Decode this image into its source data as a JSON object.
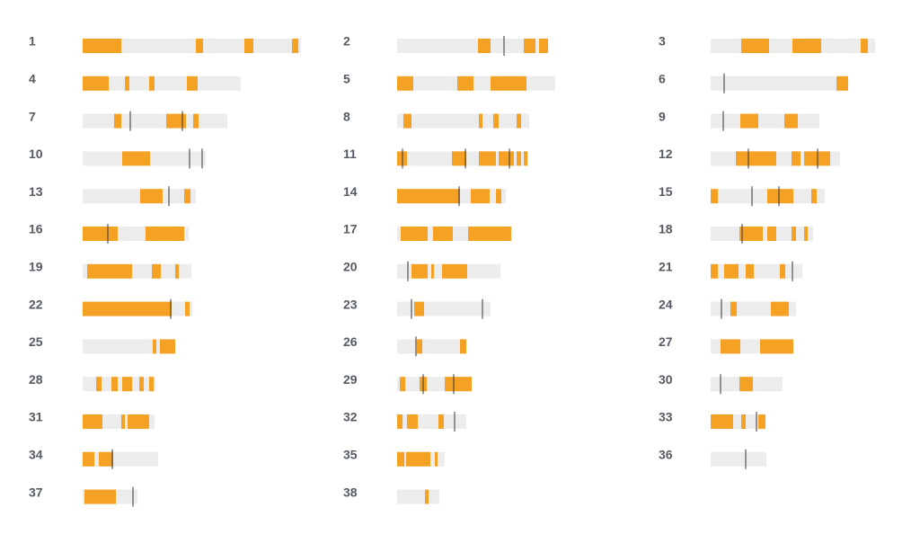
{
  "chart_data": {
    "type": "ideogram",
    "bar_color": "#ececec",
    "segment_color": "#f5a124",
    "marker_color": "#333333",
    "tracks": [
      {
        "label": "1",
        "length": 243,
        "segments": [
          [
            0,
            43
          ],
          [
            126,
            134
          ],
          [
            180,
            190
          ],
          [
            233,
            240
          ]
        ],
        "markers": []
      },
      {
        "label": "2",
        "length": 168,
        "segments": [
          [
            90,
            104
          ],
          [
            141,
            154
          ],
          [
            158,
            168
          ]
        ],
        "markers": [
          119
        ]
      },
      {
        "label": "3",
        "length": 183,
        "segments": [
          [
            34,
            65
          ],
          [
            91,
            123
          ],
          [
            167,
            175
          ]
        ],
        "markers": []
      },
      {
        "label": "4",
        "length": 176,
        "segments": [
          [
            0,
            29
          ],
          [
            47,
            52
          ],
          [
            74,
            80
          ],
          [
            116,
            128
          ]
        ],
        "markers": []
      },
      {
        "label": "5",
        "length": 176,
        "segments": [
          [
            0,
            18
          ],
          [
            67,
            85
          ],
          [
            104,
            144
          ]
        ],
        "markers": []
      },
      {
        "label": "6",
        "length": 153,
        "segments": [
          [
            140,
            153
          ]
        ],
        "markers": [
          15
        ]
      },
      {
        "label": "7",
        "length": 161,
        "segments": [
          [
            35,
            43
          ],
          [
            93,
            115
          ],
          [
            123,
            129
          ]
        ],
        "markers": [
          53,
          111
        ]
      },
      {
        "label": "8",
        "length": 147,
        "segments": [
          [
            7,
            16
          ],
          [
            91,
            95
          ],
          [
            107,
            113
          ],
          [
            133,
            138
          ]
        ],
        "markers": []
      },
      {
        "label": "9",
        "length": 121,
        "segments": [
          [
            33,
            53
          ],
          [
            82,
            97
          ]
        ],
        "markers": [
          14
        ]
      },
      {
        "label": "10",
        "length": 137,
        "segments": [
          [
            44,
            75
          ]
        ],
        "markers": [
          119,
          133
        ]
      },
      {
        "label": "11",
        "length": 146,
        "segments": [
          [
            0,
            11
          ],
          [
            61,
            77
          ],
          [
            91,
            110
          ],
          [
            113,
            130
          ],
          [
            133,
            138
          ],
          [
            141,
            145
          ]
        ],
        "markers": [
          6,
          76,
          125
        ]
      },
      {
        "label": "12",
        "length": 144,
        "segments": [
          [
            28,
            73
          ],
          [
            90,
            100
          ],
          [
            104,
            133
          ]
        ],
        "markers": [
          42,
          119
        ]
      },
      {
        "label": "13",
        "length": 126,
        "segments": [
          [
            64,
            89
          ],
          [
            113,
            120
          ]
        ],
        "markers": [
          96
        ]
      },
      {
        "label": "14",
        "length": 121,
        "segments": [
          [
            0,
            70
          ],
          [
            82,
            103
          ],
          [
            110,
            116
          ]
        ],
        "markers": [
          69
        ]
      },
      {
        "label": "15",
        "length": 127,
        "segments": [
          [
            0,
            8
          ],
          [
            63,
            92
          ],
          [
            112,
            118
          ]
        ],
        "markers": [
          46,
          76
        ]
      },
      {
        "label": "16",
        "length": 118,
        "segments": [
          [
            0,
            39
          ],
          [
            70,
            113
          ]
        ],
        "markers": [
          28
        ]
      },
      {
        "label": "17",
        "length": 127,
        "segments": [
          [
            4,
            34
          ],
          [
            40,
            62
          ],
          [
            79,
            127
          ]
        ],
        "markers": []
      },
      {
        "label": "18",
        "length": 114,
        "segments": [
          [
            32,
            58
          ],
          [
            63,
            73
          ],
          [
            90,
            95
          ],
          [
            104,
            108
          ]
        ],
        "markers": [
          35
        ]
      },
      {
        "label": "19",
        "length": 121,
        "segments": [
          [
            5,
            55
          ],
          [
            77,
            87
          ],
          [
            103,
            107
          ]
        ],
        "markers": []
      },
      {
        "label": "20",
        "length": 115,
        "segments": [
          [
            16,
            34
          ],
          [
            38,
            41
          ],
          [
            50,
            78
          ]
        ],
        "markers": [
          12
        ]
      },
      {
        "label": "21",
        "length": 102,
        "segments": [
          [
            0,
            8
          ],
          [
            15,
            31
          ],
          [
            39,
            48
          ],
          [
            77,
            83
          ]
        ],
        "markers": [
          91
        ]
      },
      {
        "label": "22",
        "length": 122,
        "segments": [
          [
            0,
            99
          ],
          [
            114,
            119
          ]
        ],
        "markers": [
          98
        ]
      },
      {
        "label": "23",
        "length": 104,
        "segments": [
          [
            19,
            30
          ]
        ],
        "markers": [
          16,
          95
        ]
      },
      {
        "label": "24",
        "length": 95,
        "segments": [
          [
            22,
            29
          ],
          [
            67,
            87
          ]
        ],
        "markers": [
          12
        ]
      },
      {
        "label": "25",
        "length": 103,
        "segments": [
          [
            78,
            82
          ],
          [
            86,
            103
          ]
        ],
        "markers": []
      },
      {
        "label": "26",
        "length": 77,
        "segments": [
          [
            22,
            28
          ],
          [
            70,
            77
          ]
        ],
        "markers": [
          21
        ]
      },
      {
        "label": "27",
        "length": 92,
        "segments": [
          [
            11,
            33
          ],
          [
            55,
            92
          ]
        ],
        "markers": []
      },
      {
        "label": "28",
        "length": 81,
        "segments": [
          [
            15,
            21
          ],
          [
            32,
            39
          ],
          [
            44,
            55
          ],
          [
            63,
            68
          ],
          [
            74,
            79
          ]
        ],
        "markers": []
      },
      {
        "label": "29",
        "length": 83,
        "segments": [
          [
            3,
            9
          ],
          [
            25,
            33
          ],
          [
            53,
            83
          ]
        ],
        "markers": [
          29,
          63
        ]
      },
      {
        "label": "30",
        "length": 80,
        "segments": [
          [
            32,
            47
          ]
        ],
        "markers": [
          11
        ]
      },
      {
        "label": "31",
        "length": 80,
        "segments": [
          [
            0,
            22
          ],
          [
            43,
            47
          ],
          [
            50,
            74
          ]
        ],
        "markers": []
      },
      {
        "label": "32",
        "length": 77,
        "segments": [
          [
            0,
            6
          ],
          [
            11,
            23
          ],
          [
            46,
            52
          ]
        ],
        "markers": [
          64
        ]
      },
      {
        "label": "33",
        "length": 61,
        "segments": [
          [
            0,
            25
          ],
          [
            34,
            39
          ],
          [
            53,
            61
          ]
        ],
        "markers": [
          51
        ]
      },
      {
        "label": "34",
        "length": 84,
        "segments": [
          [
            0,
            13
          ],
          [
            18,
            34
          ]
        ],
        "markers": [
          33
        ]
      },
      {
        "label": "35",
        "length": 53,
        "segments": [
          [
            0,
            8
          ],
          [
            10,
            37
          ],
          [
            42,
            45
          ]
        ],
        "markers": []
      },
      {
        "label": "36",
        "length": 62,
        "segments": [],
        "markers": [
          39
        ]
      },
      {
        "label": "37",
        "length": 61,
        "segments": [
          [
            2,
            37
          ]
        ],
        "markers": [
          56
        ]
      },
      {
        "label": "38",
        "length": 47,
        "segments": [
          [
            31,
            35
          ]
        ],
        "markers": []
      }
    ]
  }
}
